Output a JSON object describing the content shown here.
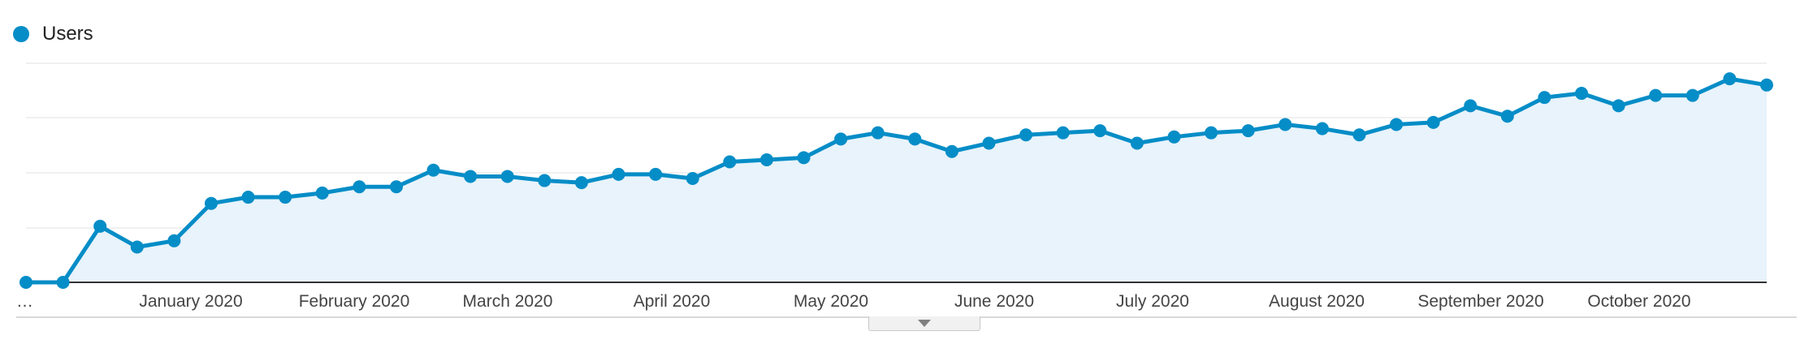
{
  "legend": {
    "label": "Users",
    "color": "#058dc7"
  },
  "chart_data": {
    "type": "area",
    "x_first_label": "…",
    "x_ticks": [
      "January 2020",
      "February 2020",
      "March 2020",
      "April 2020",
      "May 2020",
      "June 2020",
      "July 2020",
      "August 2020",
      "September 2020",
      "October 2020"
    ],
    "ylim": [
      0,
      1
    ],
    "grid": true,
    "series": [
      {
        "name": "Users",
        "color": "#058dc7",
        "fill": "#e8f3fb",
        "values": [
          0.0,
          0.0,
          0.27,
          0.17,
          0.2,
          0.38,
          0.41,
          0.41,
          0.43,
          0.46,
          0.46,
          0.54,
          0.51,
          0.51,
          0.49,
          0.48,
          0.52,
          0.52,
          0.5,
          0.58,
          0.59,
          0.6,
          0.69,
          0.72,
          0.69,
          0.63,
          0.67,
          0.71,
          0.72,
          0.73,
          0.67,
          0.7,
          0.72,
          0.73,
          0.76,
          0.74,
          0.71,
          0.76,
          0.77,
          0.85,
          0.8,
          0.89,
          0.91,
          0.85,
          0.9,
          0.9,
          0.98,
          0.95
        ]
      }
    ]
  }
}
